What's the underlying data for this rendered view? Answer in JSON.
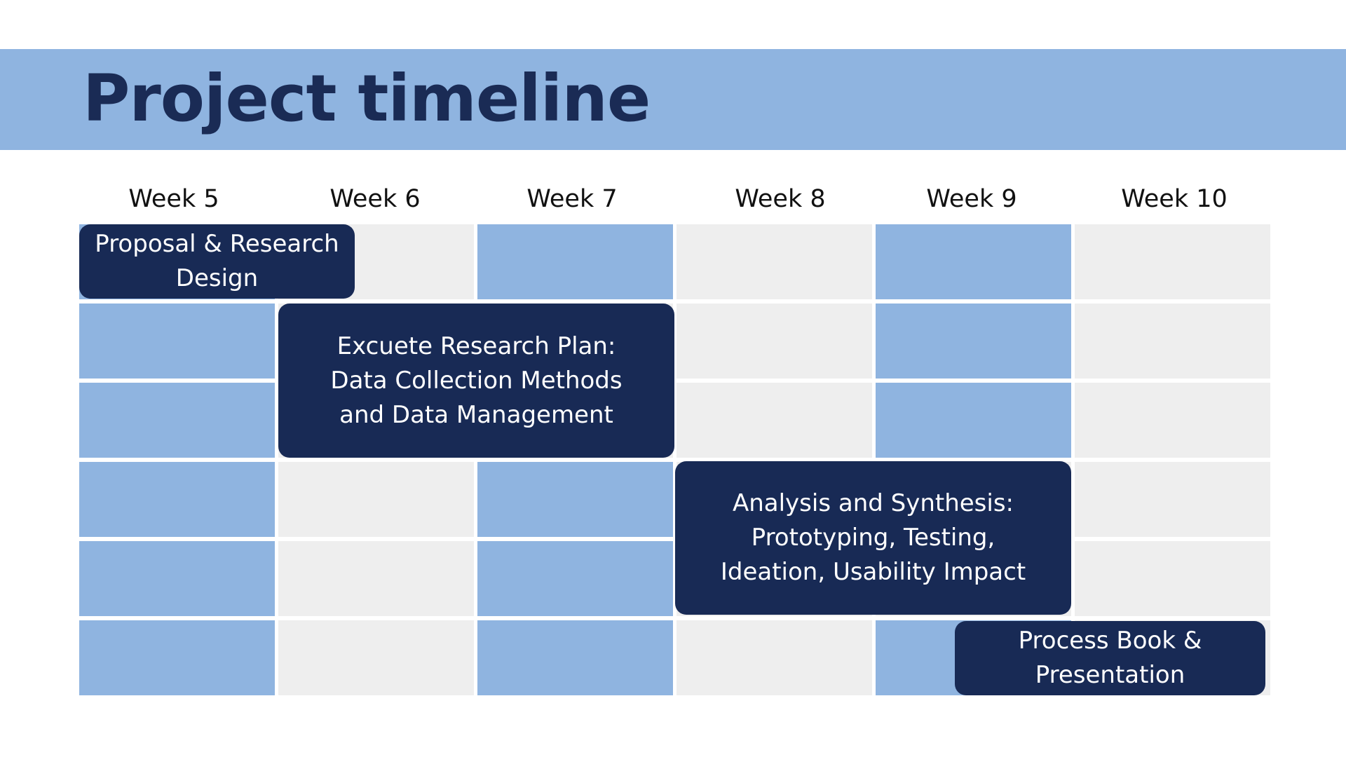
{
  "title": "Project timeline",
  "colors": {
    "band": "#8fb4e0",
    "title_text": "#1a2b55",
    "cell_blue": "#8fb4e0",
    "cell_gray": "#eeeeee",
    "task_bar": "#182a55",
    "task_text": "#ffffff"
  },
  "weeks": [
    "Week 5",
    "Week 6",
    "Week 7",
    "Week 8",
    "Week 9",
    "Week 10"
  ],
  "grid_colors": [
    [
      "blue",
      "gray",
      "blue",
      "gray",
      "blue",
      "gray"
    ],
    [
      "blue",
      "gray",
      "gray",
      "gray",
      "blue",
      "gray"
    ],
    [
      "blue",
      "gray",
      "gray",
      "gray",
      "blue",
      "gray"
    ],
    [
      "blue",
      "gray",
      "blue",
      "gray",
      "gray",
      "gray"
    ],
    [
      "blue",
      "gray",
      "blue",
      "gray",
      "gray",
      "gray"
    ],
    [
      "blue",
      "gray",
      "blue",
      "gray",
      "blue",
      "gray"
    ]
  ],
  "tasks": [
    {
      "label": "Proposal & Research Design"
    },
    {
      "label": "Excuete Research Plan: Data Collection Methods and Data Management"
    },
    {
      "label": "Analysis and Synthesis: Prototyping, Testing, Ideation, Usability Impact"
    },
    {
      "label": "Process Book & Presentation"
    }
  ]
}
